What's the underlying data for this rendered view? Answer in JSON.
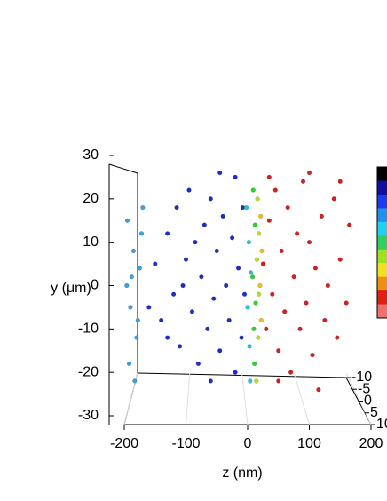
{
  "chart_data": {
    "type": "scatter3d",
    "xlabel": "z (nm)",
    "ylabel": "y (μm)",
    "xlim": [
      -200,
      200
    ],
    "xticks": [
      -200,
      -100,
      0,
      100,
      200
    ],
    "ylim": [
      -30,
      30
    ],
    "yticks": [
      -30,
      -20,
      -10,
      0,
      10,
      20,
      30
    ],
    "zlim": [
      -10,
      10
    ],
    "zticks": [
      -10,
      -5,
      0,
      5,
      10
    ],
    "colorbar": [
      "#000000",
      "#1010a0",
      "#1a3cf0",
      "#2090f0",
      "#20d0f0",
      "#30d060",
      "#a0e020",
      "#f0e020",
      "#f09010",
      "#e02010",
      "#f07070"
    ],
    "series": [
      {
        "color": "#3aa0e0",
        "x": [
          -195,
          -190,
          -185,
          -180,
          -175,
          -170,
          -192,
          -188,
          -178,
          -172,
          -196,
          -183
        ],
        "y": [
          15,
          -5,
          8,
          -12,
          4,
          18,
          -18,
          2,
          -8,
          12,
          0,
          -22
        ]
      },
      {
        "color": "#1a2fc8",
        "x": [
          -150,
          -140,
          -130,
          -120,
          -115,
          -110,
          -100,
          -95,
          -90,
          -85,
          -80,
          -75,
          -70,
          -65,
          -60,
          -55,
          -50,
          -45,
          -40,
          -35,
          -30,
          -25,
          -20,
          -15,
          -10,
          -8,
          -5,
          -130,
          -105,
          -60,
          -20,
          -160,
          -45
        ],
        "y": [
          5,
          -8,
          12,
          -2,
          18,
          -14,
          6,
          22,
          -6,
          10,
          -18,
          2,
          14,
          -10,
          20,
          -3,
          8,
          -15,
          16,
          0,
          -8,
          11,
          -20,
          4,
          -12,
          18,
          -2,
          -12,
          0,
          -22,
          25,
          -5,
          26
        ]
      },
      {
        "color": "#d42020",
        "x": [
          25,
          30,
          35,
          40,
          45,
          50,
          55,
          60,
          65,
          70,
          75,
          80,
          85,
          90,
          95,
          100,
          105,
          110,
          115,
          120,
          125,
          130,
          140,
          145,
          150,
          160,
          165,
          50,
          35,
          100,
          150
        ],
        "y": [
          5,
          -10,
          15,
          -2,
          22,
          -15,
          8,
          -6,
          18,
          -20,
          2,
          12,
          -10,
          24,
          -4,
          10,
          -16,
          4,
          -24,
          16,
          -8,
          0,
          20,
          -12,
          6,
          -4,
          14,
          -22,
          25,
          26,
          24
        ]
      },
      {
        "color": "#19c8e0",
        "x": [
          0,
          2,
          3,
          5,
          -2,
          4
        ],
        "y": [
          -5,
          10,
          -14,
          3,
          18,
          -22
        ]
      },
      {
        "color": "#30d030",
        "x": [
          8,
          10,
          12,
          9,
          11,
          13
        ],
        "y": [
          2,
          -10,
          14,
          22,
          -18,
          -4
        ]
      },
      {
        "color": "#b8e020",
        "x": [
          15,
          17,
          16,
          18,
          14,
          18
        ],
        "y": [
          6,
          -12,
          20,
          -2,
          -22,
          12
        ]
      },
      {
        "color": "#f0c020",
        "x": [
          20,
          22,
          21,
          23
        ],
        "y": [
          0,
          -8,
          16,
          8
        ]
      }
    ]
  }
}
